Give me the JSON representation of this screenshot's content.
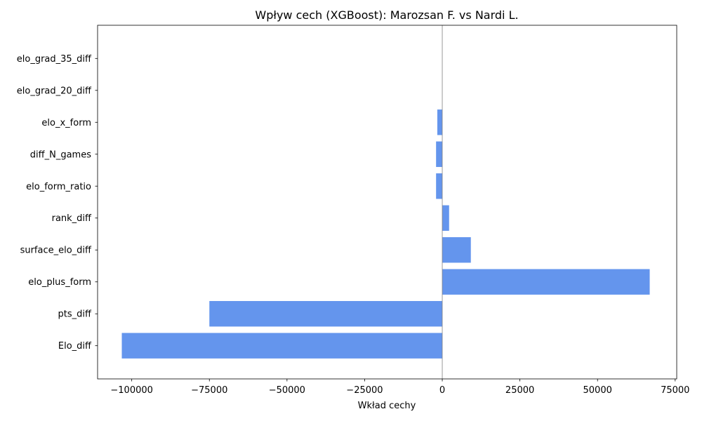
{
  "chart_data": {
    "type": "bar",
    "orientation": "horizontal",
    "title": "Wpływ cech (XGBoost): Marozsan F. vs Nardi L.",
    "xlabel": "Wkład cechy",
    "ylabel": "",
    "xlim": [
      -111000,
      75500
    ],
    "xticks": [
      -100000,
      -75000,
      -50000,
      -25000,
      0,
      25000,
      50000,
      75000
    ],
    "xtick_labels": [
      "−100000",
      "−75000",
      "−50000",
      "−25000",
      "0",
      "25000",
      "50000",
      "75000"
    ],
    "categories": [
      "Elo_diff",
      "pts_diff",
      "elo_plus_form",
      "surface_elo_diff",
      "rank_diff",
      "elo_form_ratio",
      "diff_N_games",
      "elo_x_form",
      "elo_grad_20_diff",
      "elo_grad_35_diff"
    ],
    "values": [
      -103200,
      -75000,
      66800,
      9200,
      2200,
      -2000,
      -2000,
      -1600,
      0,
      0
    ],
    "bar_color": "#6495ed",
    "zero_line_color": "#808080",
    "grid": false,
    "legend": "none"
  }
}
